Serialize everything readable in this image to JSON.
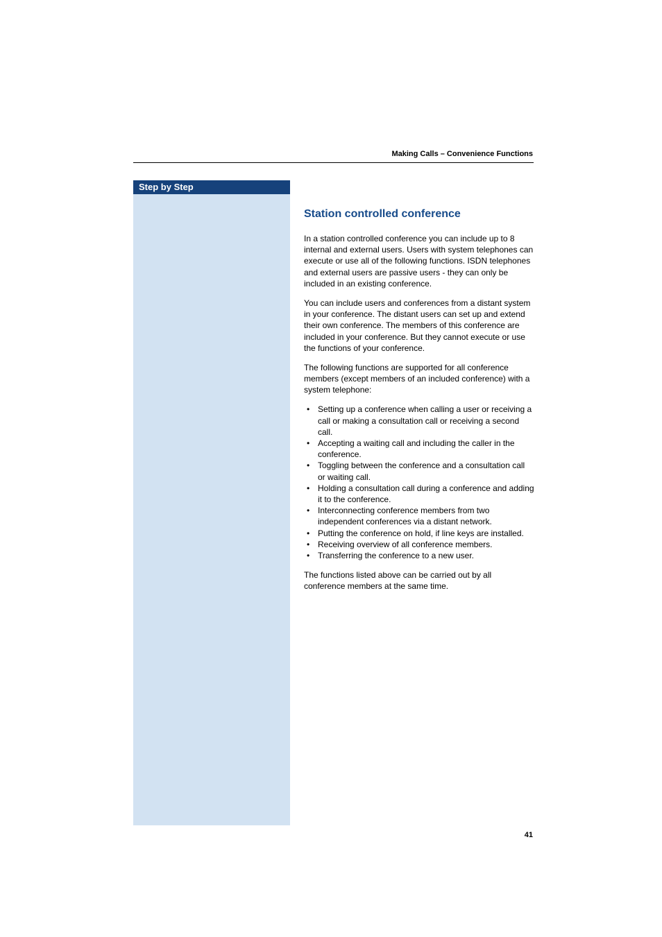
{
  "header": {
    "running_title": "Making Calls – Convenience Functions"
  },
  "sidebar": {
    "title": "Step by Step",
    "bg_color": "#d2e2f2",
    "title_bg_color": "#16427b",
    "title_text_color": "#ffffff"
  },
  "content": {
    "heading": "Station controlled conference",
    "heading_color": "#164a8a",
    "para1": "In a station controlled conference you can include up to 8 internal and external users. Users with system telephones can execute or use all of the following functions. ISDN telephones and external users are passive users - they can only be included in an existing conference.",
    "para2": "You can include users and conferences from a distant system in your conference. The distant users can set up and extend their own conference. The members of this conference are included in your conference. But they cannot execute or use the functions of your conference.",
    "para3": "The following functions are supported for all conference members (except members of an included conference) with a system telephone:",
    "bullets": [
      "Setting up a conference when calling a user or receiving a call or making a consultation call or receiving a second call.",
      "Accepting a waiting call and including the caller in the conference.",
      "Toggling between the conference and a consultation call or waiting call.",
      "Holding a consultation call during a conference and adding it to the conference.",
      "Interconnecting conference members from two independent conferences via a distant network.",
      "Putting the conference on hold, if line keys are installed.",
      "Receiving overview of all conference members.",
      "Transferring the conference to a new user."
    ],
    "para4": "The functions listed above can be carried out by all conference members at the same time."
  },
  "footer": {
    "page_number": "41"
  }
}
